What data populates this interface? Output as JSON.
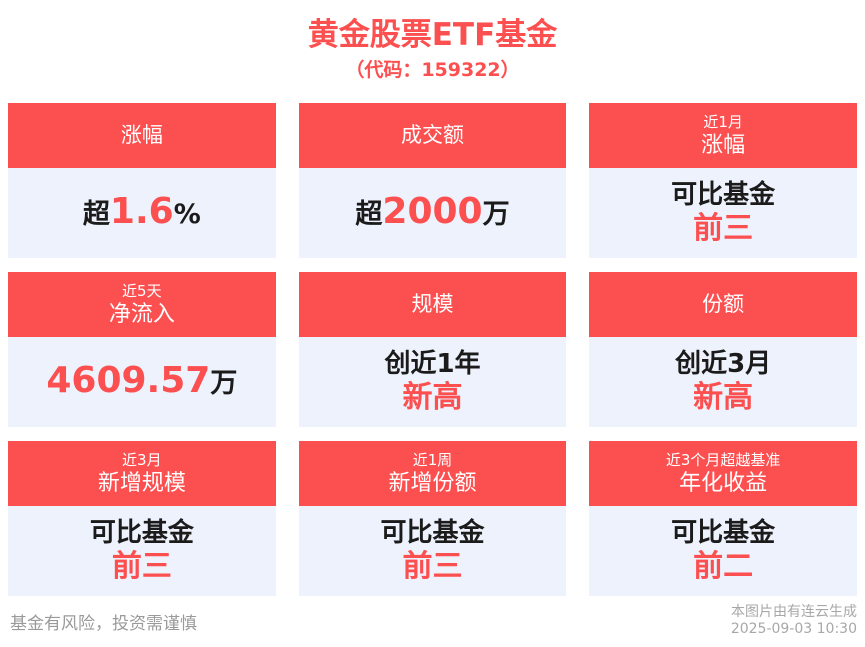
{
  "page": {
    "title": "黄金股票ETF基金",
    "subtitle": "（代码：159322）",
    "footer_left": "基金有风险，投资需谨慎",
    "footer_right_line1": "本图片由有连云生成",
    "footer_right_line2": "2025-09-03 10:30"
  },
  "colors": {
    "accent_red": "#fc4f50",
    "card_body_bg": "#edf2fc",
    "ink": "#1b1b1b",
    "footer_gray": "#9a9a9a",
    "stamp_gray": "#a8a8a8",
    "page_bg": "#ffffff"
  },
  "cards": [
    {
      "header": {
        "small": "",
        "main": "涨幅"
      },
      "lines": [
        {
          "cls": "single",
          "segments": [
            {
              "text": "超",
              "color": "dark"
            },
            {
              "text": "1.6",
              "color": "red",
              "big": true
            },
            {
              "text": "%",
              "color": "dark"
            }
          ]
        }
      ]
    },
    {
      "header": {
        "small": "",
        "main": "成交额"
      },
      "lines": [
        {
          "cls": "single",
          "segments": [
            {
              "text": "超",
              "color": "dark"
            },
            {
              "text": "2000",
              "color": "red",
              "big": true
            },
            {
              "text": "万",
              "color": "dark"
            }
          ]
        }
      ]
    },
    {
      "header": {
        "small": "近1月",
        "main": "涨幅"
      },
      "lines": [
        {
          "cls": "first",
          "segments": [
            {
              "text": "可比基金",
              "color": "dark"
            }
          ]
        },
        {
          "cls": "second",
          "segments": [
            {
              "text": "前三",
              "color": "red"
            }
          ]
        }
      ]
    },
    {
      "header": {
        "small": "近5天",
        "main": "净流入"
      },
      "lines": [
        {
          "cls": "single",
          "segments": [
            {
              "text": "4609.57",
              "color": "red",
              "big": true
            },
            {
              "text": "万",
              "color": "dark"
            }
          ]
        }
      ]
    },
    {
      "header": {
        "small": "",
        "main": "规模"
      },
      "lines": [
        {
          "cls": "first",
          "segments": [
            {
              "text": "创近1年",
              "color": "dark"
            }
          ]
        },
        {
          "cls": "second",
          "segments": [
            {
              "text": "新高",
              "color": "red"
            }
          ]
        }
      ]
    },
    {
      "header": {
        "small": "",
        "main": "份额"
      },
      "lines": [
        {
          "cls": "first",
          "segments": [
            {
              "text": "创近3月",
              "color": "dark"
            }
          ]
        },
        {
          "cls": "second",
          "segments": [
            {
              "text": "新高",
              "color": "red"
            }
          ]
        }
      ]
    },
    {
      "header": {
        "small": "近3月",
        "main": "新增规模"
      },
      "lines": [
        {
          "cls": "first",
          "segments": [
            {
              "text": "可比基金",
              "color": "dark"
            }
          ]
        },
        {
          "cls": "second",
          "segments": [
            {
              "text": "前三",
              "color": "red"
            }
          ]
        }
      ]
    },
    {
      "header": {
        "small": "近1周",
        "main": "新增份额"
      },
      "lines": [
        {
          "cls": "first",
          "segments": [
            {
              "text": "可比基金",
              "color": "dark"
            }
          ]
        },
        {
          "cls": "second",
          "segments": [
            {
              "text": "前三",
              "color": "red"
            }
          ]
        }
      ]
    },
    {
      "header": {
        "small": "近3个月超越基准",
        "main": "年化收益"
      },
      "lines": [
        {
          "cls": "first",
          "segments": [
            {
              "text": "可比基金",
              "color": "dark"
            }
          ]
        },
        {
          "cls": "second",
          "segments": [
            {
              "text": "前二",
              "color": "red"
            }
          ]
        }
      ]
    }
  ]
}
